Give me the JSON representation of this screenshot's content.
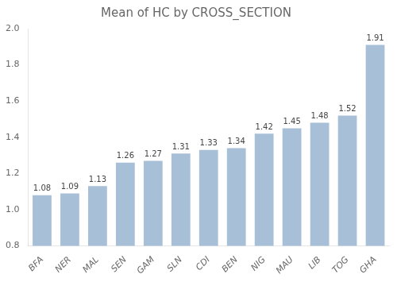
{
  "chart_data": {
    "type": "bar",
    "title": "Mean of HC by CROSS_SECTION",
    "categories": [
      "BFA",
      "NER",
      "MAL",
      "SEN",
      "GAM",
      "SLN",
      "CDI",
      "BEN",
      "NIG",
      "MAU",
      "LIB",
      "TOG",
      "GHA"
    ],
    "values": [
      1.08,
      1.09,
      1.13,
      1.26,
      1.27,
      1.31,
      1.33,
      1.34,
      1.42,
      1.45,
      1.48,
      1.52,
      1.91
    ],
    "color": "#a8bfd8",
    "ylim": [
      0.8,
      2.0
    ],
    "yticks": [
      0.8,
      {
        "value": 1,
        "label": "1.0"
      },
      1.2,
      1.4,
      1.6,
      1.8,
      {
        "value": 2,
        "label": "2.0"
      }
    ],
    "grid": false,
    "data_labels": true
  }
}
